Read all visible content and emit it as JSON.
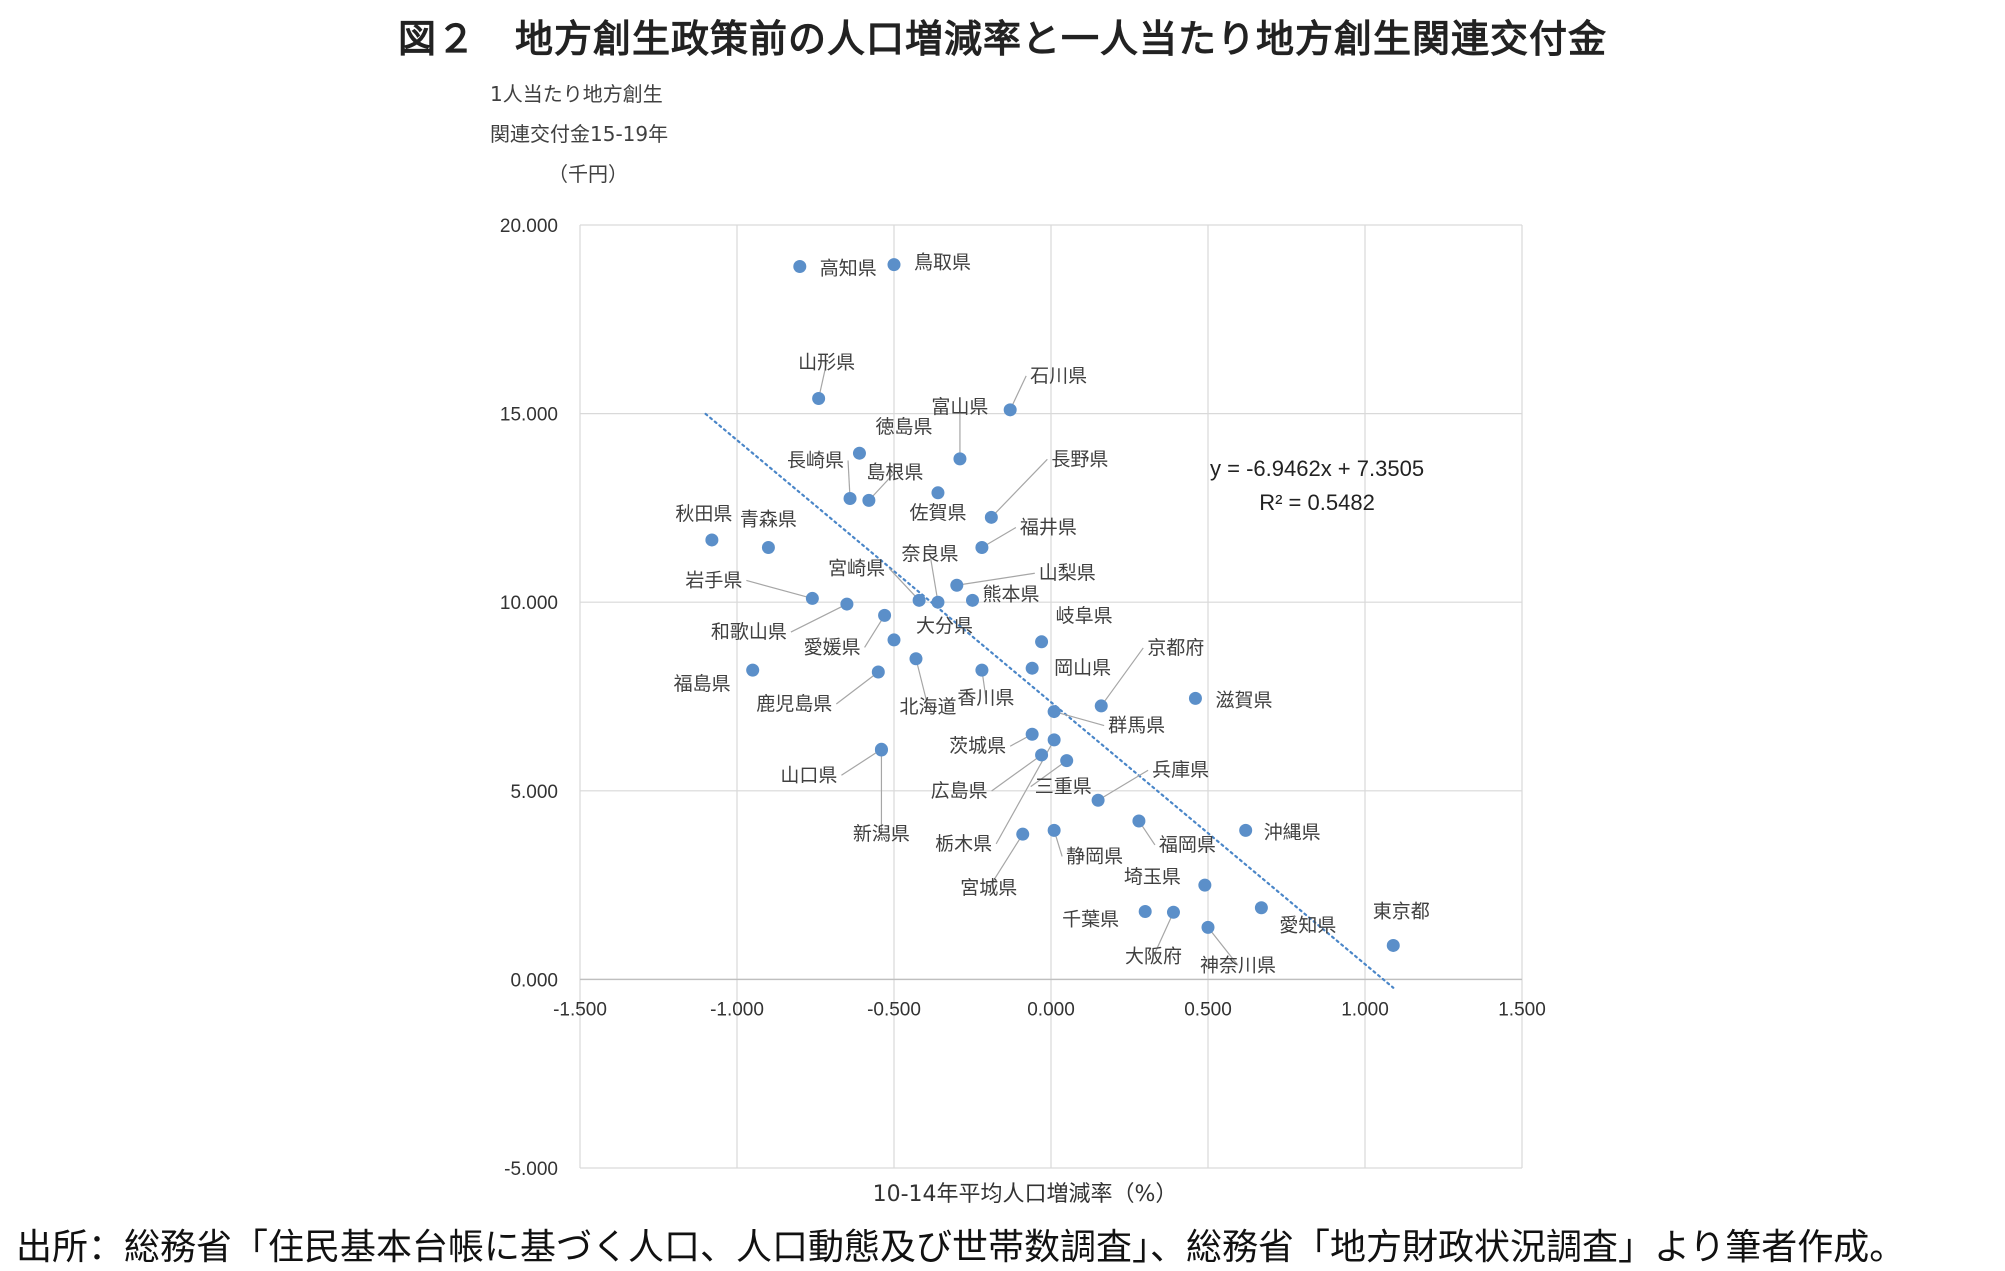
{
  "title": "図２　地方創生政策前の人口増減率と一人当たり地方創生関連交付金",
  "source": "出所：総務省「住民基本台帳に基づく人口、人口動態及び世帯数調査」、総務省「地方財政状況調査」より筆者作成。",
  "chart_data": {
    "type": "scatter",
    "xlabel": "10-14年平均人口増減率（%）",
    "ylabel_lines": [
      "1人当たり地方創生",
      "関連交付金15-19年",
      "（千円）"
    ],
    "xlim": [
      -1.5,
      1.5
    ],
    "ylim": [
      -5,
      20
    ],
    "x_ticks": [
      "-1.500",
      "-1.000",
      "-0.500",
      "0.000",
      "0.500",
      "1.000",
      "1.500"
    ],
    "y_ticks": [
      "-5.000",
      "0.000",
      "5.000",
      "10.000",
      "15.000",
      "20.000"
    ],
    "grid": true,
    "point_color": "#5b8fc9",
    "trendline": {
      "type": "linear",
      "slope": -6.9462,
      "intercept": 7.3505,
      "style": "dotted",
      "color": "#4a86c8",
      "equation": "y = -6.9462x + 7.3505",
      "r2_label": "R² = 0.5482"
    },
    "points": [
      {
        "name": "高知県",
        "x": -0.8,
        "y": 18.9
      },
      {
        "name": "鳥取県",
        "x": -0.5,
        "y": 18.95
      },
      {
        "name": "山形県",
        "x": -0.74,
        "y": 15.4
      },
      {
        "name": "石川県",
        "x": -0.13,
        "y": 15.1
      },
      {
        "name": "徳島県",
        "x": -0.61,
        "y": 13.95
      },
      {
        "name": "富山県",
        "x": -0.29,
        "y": 13.8
      },
      {
        "name": "長崎県",
        "x": -0.64,
        "y": 12.75
      },
      {
        "name": "島根県",
        "x": -0.58,
        "y": 12.7
      },
      {
        "name": "佐賀県",
        "x": -0.36,
        "y": 12.9
      },
      {
        "name": "長野県",
        "x": -0.19,
        "y": 12.25
      },
      {
        "name": "秋田県",
        "x": -1.08,
        "y": 11.65
      },
      {
        "name": "青森県",
        "x": -0.9,
        "y": 11.45
      },
      {
        "name": "福井県",
        "x": -0.22,
        "y": 11.45
      },
      {
        "name": "岩手県",
        "x": -0.76,
        "y": 10.1
      },
      {
        "name": "和歌山県",
        "x": -0.65,
        "y": 9.95
      },
      {
        "name": "宮崎県",
        "x": -0.42,
        "y": 10.05
      },
      {
        "name": "奈良県",
        "x": -0.36,
        "y": 10.0
      },
      {
        "name": "山梨県",
        "x": -0.3,
        "y": 10.45
      },
      {
        "name": "熊本県",
        "x": -0.25,
        "y": 10.05
      },
      {
        "name": "愛媛県",
        "x": -0.53,
        "y": 9.65
      },
      {
        "name": "大分県",
        "x": -0.5,
        "y": 9.0
      },
      {
        "name": "岐阜県",
        "x": -0.03,
        "y": 8.95
      },
      {
        "name": "福島県",
        "x": -0.95,
        "y": 8.2
      },
      {
        "name": "鹿児島県",
        "x": -0.55,
        "y": 8.15
      },
      {
        "name": "北海道",
        "x": -0.43,
        "y": 8.5
      },
      {
        "name": "香川県",
        "x": -0.22,
        "y": 8.2
      },
      {
        "name": "岡山県",
        "x": -0.06,
        "y": 8.25
      },
      {
        "name": "京都府",
        "x": 0.16,
        "y": 7.25
      },
      {
        "name": "滋賀県",
        "x": 0.46,
        "y": 7.45
      },
      {
        "name": "群馬県",
        "x": 0.01,
        "y": 7.1
      },
      {
        "name": "山口県",
        "x": -0.54,
        "y": 6.1
      },
      {
        "name": "茨城県",
        "x": -0.06,
        "y": 6.5
      },
      {
        "name": "栃木県",
        "x": 0.01,
        "y": 6.35
      },
      {
        "name": "広島県",
        "x": -0.03,
        "y": 5.95
      },
      {
        "name": "三重県",
        "x": 0.05,
        "y": 5.8
      },
      {
        "name": "兵庫県",
        "x": 0.15,
        "y": 4.75
      },
      {
        "name": "新潟県",
        "x": -0.54,
        "y": 6.08
      },
      {
        "name": "宮城県",
        "x": -0.09,
        "y": 3.85
      },
      {
        "name": "静岡県",
        "x": 0.01,
        "y": 3.95
      },
      {
        "name": "福岡県",
        "x": 0.28,
        "y": 4.2
      },
      {
        "name": "沖縄県",
        "x": 0.62,
        "y": 3.95
      },
      {
        "name": "埼玉県",
        "x": 0.49,
        "y": 2.5
      },
      {
        "name": "千葉県",
        "x": 0.3,
        "y": 1.8
      },
      {
        "name": "大阪府",
        "x": 0.39,
        "y": 1.78
      },
      {
        "name": "神奈川県",
        "x": 0.5,
        "y": 1.38
      },
      {
        "name": "愛知県",
        "x": 0.67,
        "y": 1.9
      },
      {
        "name": "東京都",
        "x": 1.09,
        "y": 0.9
      }
    ]
  }
}
